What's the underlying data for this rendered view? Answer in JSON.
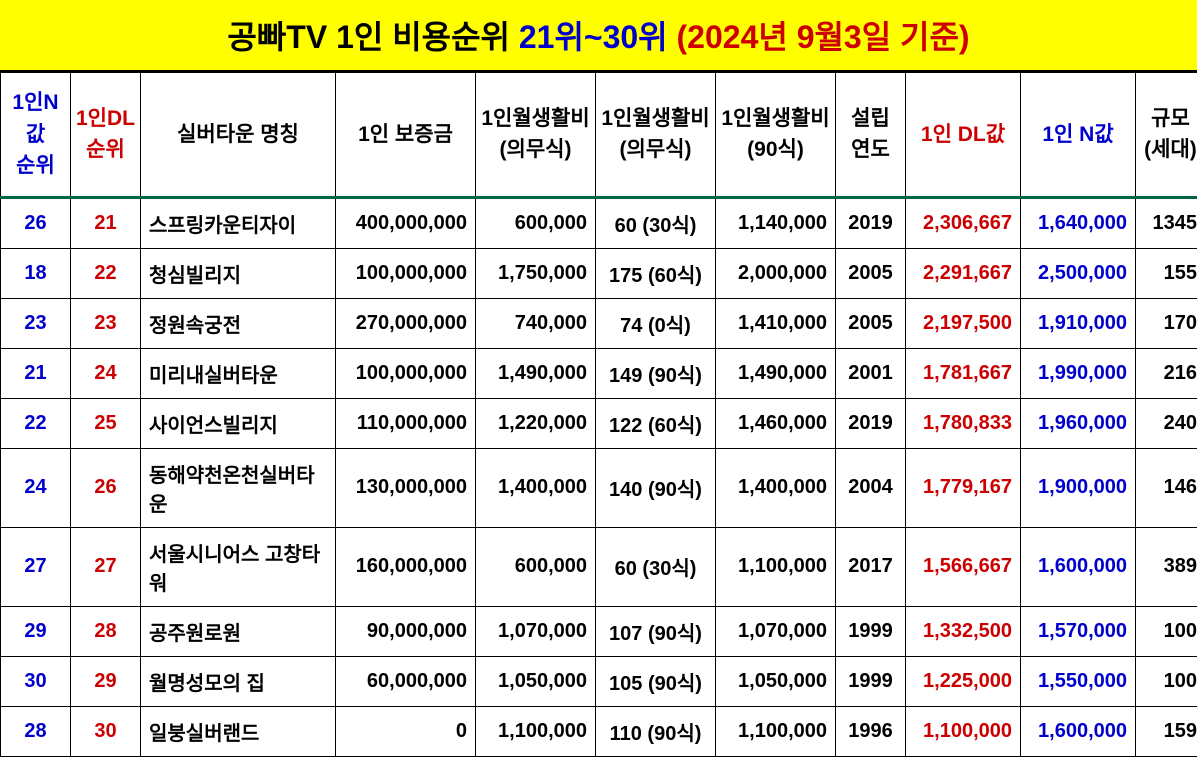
{
  "title": {
    "prefix": "공빠TV 1인 비용순위 ",
    "range": "21위~30위 ",
    "suffix": "(2024년 9월3일 기준)"
  },
  "table": {
    "columns": [
      {
        "key": "n_rank",
        "label": "1인N값\n순위",
        "class": "col-n-rank"
      },
      {
        "key": "dl_rank",
        "label": "1인DL\n순위",
        "class": "col-dl-rank"
      },
      {
        "key": "name",
        "label": "실버타운 명칭",
        "class": ""
      },
      {
        "key": "deposit",
        "label": "1인 보증금",
        "class": ""
      },
      {
        "key": "monthly_a",
        "label": "1인월생활비\n(의무식)",
        "class": ""
      },
      {
        "key": "monthly_b",
        "label": "1인월생활비\n(의무식)",
        "class": ""
      },
      {
        "key": "monthly_c",
        "label": "1인월생활비\n(90식)",
        "class": ""
      },
      {
        "key": "year",
        "label": "설립\n연도",
        "class": ""
      },
      {
        "key": "dl_val",
        "label": "1인 DL값",
        "class": "col-dl-val"
      },
      {
        "key": "n_val",
        "label": "1인 N값",
        "class": "col-n-val"
      },
      {
        "key": "scale",
        "label": "규모\n(세대)",
        "class": ""
      }
    ],
    "rows": [
      {
        "n_rank": "26",
        "dl_rank": "21",
        "name": "스프링카운티자이",
        "deposit": "400,000,000",
        "monthly_a": "600,000",
        "monthly_b": "60 (30식)",
        "monthly_c": "1,140,000",
        "year": "2019",
        "dl_val": "2,306,667",
        "n_val": "1,640,000",
        "scale": "1345"
      },
      {
        "n_rank": "18",
        "dl_rank": "22",
        "name": "청심빌리지",
        "deposit": "100,000,000",
        "monthly_a": "1,750,000",
        "monthly_b": "175 (60식)",
        "monthly_c": "2,000,000",
        "year": "2005",
        "dl_val": "2,291,667",
        "n_val": "2,500,000",
        "scale": "155"
      },
      {
        "n_rank": "23",
        "dl_rank": "23",
        "name": "정원속궁전",
        "deposit": "270,000,000",
        "monthly_a": "740,000",
        "monthly_b": "74 (0식)",
        "monthly_c": "1,410,000",
        "year": "2005",
        "dl_val": "2,197,500",
        "n_val": "1,910,000",
        "scale": "170"
      },
      {
        "n_rank": "21",
        "dl_rank": "24",
        "name": "미리내실버타운",
        "deposit": "100,000,000",
        "monthly_a": "1,490,000",
        "monthly_b": "149 (90식)",
        "monthly_c": "1,490,000",
        "year": "2001",
        "dl_val": "1,781,667",
        "n_val": "1,990,000",
        "scale": "216"
      },
      {
        "n_rank": "22",
        "dl_rank": "25",
        "name": "사이언스빌리지",
        "deposit": "110,000,000",
        "monthly_a": "1,220,000",
        "monthly_b": "122 (60식)",
        "monthly_c": "1,460,000",
        "year": "2019",
        "dl_val": "1,780,833",
        "n_val": "1,960,000",
        "scale": "240"
      },
      {
        "n_rank": "24",
        "dl_rank": "26",
        "name": "동해약천온천실버타운",
        "deposit": "130,000,000",
        "monthly_a": "1,400,000",
        "monthly_b": "140 (90식)",
        "monthly_c": "1,400,000",
        "year": "2004",
        "dl_val": "1,779,167",
        "n_val": "1,900,000",
        "scale": "146"
      },
      {
        "n_rank": "27",
        "dl_rank": "27",
        "name": "서울시니어스 고창타워",
        "deposit": "160,000,000",
        "monthly_a": "600,000",
        "monthly_b": "60 (30식)",
        "monthly_c": "1,100,000",
        "year": "2017",
        "dl_val": "1,566,667",
        "n_val": "1,600,000",
        "scale": "389"
      },
      {
        "n_rank": "29",
        "dl_rank": "28",
        "name": "공주원로원",
        "deposit": "90,000,000",
        "monthly_a": "1,070,000",
        "monthly_b": "107 (90식)",
        "monthly_c": "1,070,000",
        "year": "1999",
        "dl_val": "1,332,500",
        "n_val": "1,570,000",
        "scale": "100"
      },
      {
        "n_rank": "30",
        "dl_rank": "29",
        "name": "월명성모의 집",
        "deposit": "60,000,000",
        "monthly_a": "1,050,000",
        "monthly_b": "105 (90식)",
        "monthly_c": "1,050,000",
        "year": "1999",
        "dl_val": "1,225,000",
        "n_val": "1,550,000",
        "scale": "100"
      },
      {
        "n_rank": "28",
        "dl_rank": "30",
        "name": "일붕실버랜드",
        "deposit": "0",
        "monthly_a": "1,100,000",
        "monthly_b": "110 (90식)",
        "monthly_c": "1,100,000",
        "year": "1996",
        "dl_val": "1,100,000",
        "n_val": "1,600,000",
        "scale": "159"
      }
    ],
    "cell_align": {
      "n_rank": "center",
      "dl_rank": "center",
      "name": "left",
      "deposit": "right",
      "monthly_a": "right",
      "monthly_b": "center",
      "monthly_c": "right",
      "year": "center",
      "dl_val": "right",
      "n_val": "right",
      "scale": "right"
    },
    "cell_extra": {
      "n_rank": "n-rank",
      "dl_rank": "dl-rank",
      "dl_val": "dl-val",
      "n_val": "n-val"
    }
  },
  "colors": {
    "title_bg": "#ffff00",
    "black": "#000000",
    "blue": "#0000cc",
    "red": "#cc0000",
    "green_rule": "#006644"
  }
}
